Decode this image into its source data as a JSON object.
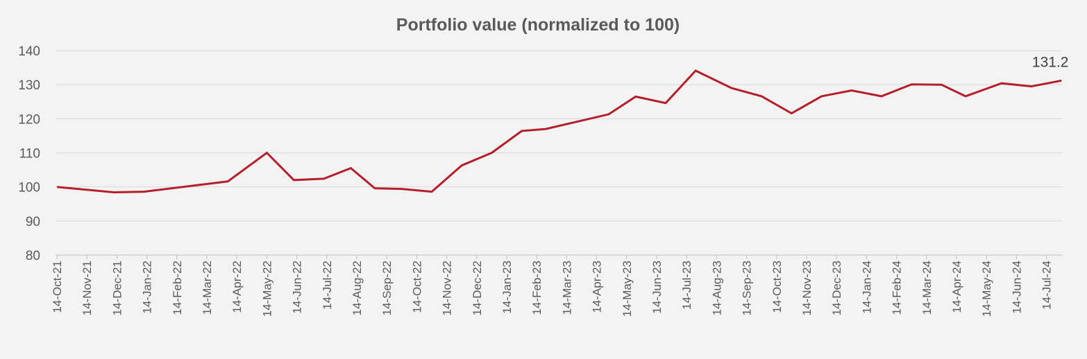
{
  "chart_data": {
    "type": "line",
    "title": "Portfolio value (normalized to 100)",
    "xlabel": "",
    "ylabel": "",
    "ylim": [
      80,
      140
    ],
    "yticks": [
      80,
      90,
      100,
      110,
      120,
      130,
      140
    ],
    "grid": true,
    "line_color": "#b51f2a",
    "x_unit": "months since 14-Oct-21",
    "xlim": [
      0,
      33.5
    ],
    "xtick_labels": [
      "14-Oct-21",
      "14-Nov-21",
      "14-Dec-21",
      "14-Jan-22",
      "14-Feb-22",
      "14-Mar-22",
      "14-Apr-22",
      "14-May-22",
      "14-Jun-22",
      "14-Jul-22",
      "14-Aug-22",
      "14-Sep-22",
      "14-Oct-22",
      "14-Nov-22",
      "14-Dec-22",
      "14-Jan-23",
      "14-Feb-23",
      "14-Mar-23",
      "14-Apr-23",
      "14-May-23",
      "14-Jun-23",
      "14-Jul-23",
      "14-Aug-23",
      "14-Sep-23",
      "14-Oct-23",
      "14-Nov-23",
      "14-Dec-23",
      "14-Jan-24",
      "14-Feb-24",
      "14-Mar-24",
      "14-Apr-24",
      "14-May-24",
      "14-Jun-24",
      "14-Jul-24"
    ],
    "series": [
      {
        "name": "Portfolio value",
        "x": [
          0,
          1.9,
          2.9,
          5.7,
          7.0,
          7.9,
          8.9,
          9.8,
          10.6,
          11.5,
          12.5,
          13.5,
          14.5,
          15.5,
          16.3,
          18.4,
          19.3,
          20.3,
          21.3,
          22.5,
          23.5,
          24.5,
          25.5,
          26.5,
          27.5,
          28.5,
          29.5,
          30.3,
          31.5,
          32.5,
          33.5
        ],
        "values": [
          100,
          98.4,
          98.6,
          101.6,
          110,
          102,
          102.4,
          105.5,
          99.6,
          99.4,
          98.6,
          106.3,
          110,
          116.4,
          117,
          121.3,
          126.5,
          124.6,
          134.1,
          129,
          126.6,
          121.6,
          126.6,
          128.3,
          126.6,
          130.1,
          130,
          126.6,
          130.4,
          129.5,
          131.2
        ]
      }
    ],
    "annotations": [
      {
        "text": "131.2",
        "target": "last-point"
      }
    ]
  }
}
